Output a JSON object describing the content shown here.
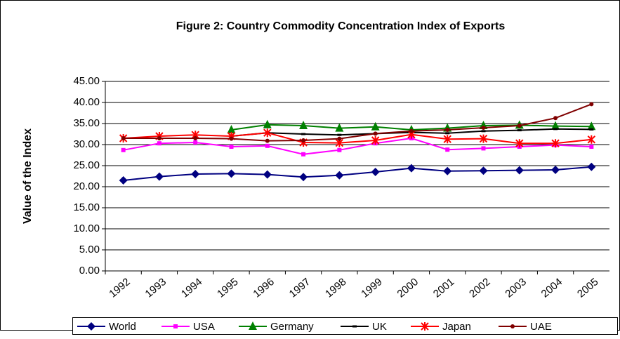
{
  "chart_data": {
    "type": "line",
    "title": "Figure 2: Country Commodity Concentration Index of Exports",
    "y_label": "Value of the Index",
    "categories": [
      "1992",
      "1993",
      "1994",
      "1995",
      "1996",
      "1997",
      "1998",
      "1999",
      "2000",
      "2001",
      "2002",
      "2003",
      "2004",
      "2005"
    ],
    "series": [
      {
        "name": "World",
        "color": "#000080",
        "marker": "diamond",
        "values": [
          21.5,
          22.4,
          23.0,
          23.1,
          22.9,
          22.3,
          22.7,
          23.5,
          24.4,
          23.7,
          23.8,
          23.9,
          24.0,
          24.7
        ]
      },
      {
        "name": "USA",
        "color": "#ff00ff",
        "marker": "square",
        "values": [
          28.7,
          30.3,
          30.5,
          29.5,
          29.7,
          27.7,
          28.7,
          30.3,
          31.5,
          28.8,
          29.1,
          29.5,
          29.9,
          29.5
        ]
      },
      {
        "name": "Germany",
        "color": "#008000",
        "marker": "triangle",
        "values": [
          null,
          null,
          null,
          33.5,
          34.7,
          34.5,
          33.9,
          34.2,
          33.5,
          33.9,
          34.5,
          34.6,
          34.4,
          34.3
        ]
      },
      {
        "name": "UK",
        "color": "#000000",
        "marker": "dash",
        "values": [
          null,
          null,
          null,
          32.0,
          32.8,
          32.5,
          32.3,
          32.6,
          32.9,
          32.7,
          33.2,
          33.4,
          33.7,
          33.6
        ]
      },
      {
        "name": "Japan",
        "color": "#ff0000",
        "marker": "star",
        "values": [
          31.5,
          32.0,
          32.3,
          32.0,
          32.8,
          30.5,
          30.4,
          31.0,
          32.4,
          31.3,
          31.4,
          30.3,
          30.3,
          31.2
        ]
      },
      {
        "name": "UAE",
        "color": "#800000",
        "marker": "circle",
        "values": [
          31.5,
          31.5,
          31.5,
          31.4,
          30.9,
          31.0,
          31.4,
          32.6,
          33.2,
          33.5,
          34.0,
          34.5,
          36.3,
          39.6
        ]
      }
    ],
    "ylim": [
      0,
      45
    ],
    "yticks": [
      {
        "value": 0,
        "label": "0.00"
      },
      {
        "value": 5,
        "label": "5.00"
      },
      {
        "value": 10,
        "label": "10.00"
      },
      {
        "value": 15,
        "label": "15.00"
      },
      {
        "value": 20,
        "label": "20.00"
      },
      {
        "value": 25,
        "label": "25.00"
      },
      {
        "value": 30,
        "label": "30.00"
      },
      {
        "value": 35,
        "label": "35.00"
      },
      {
        "value": 40,
        "label": "40.00"
      },
      {
        "value": 45,
        "label": "45.00"
      }
    ],
    "grid": true,
    "legend": "bottom"
  }
}
